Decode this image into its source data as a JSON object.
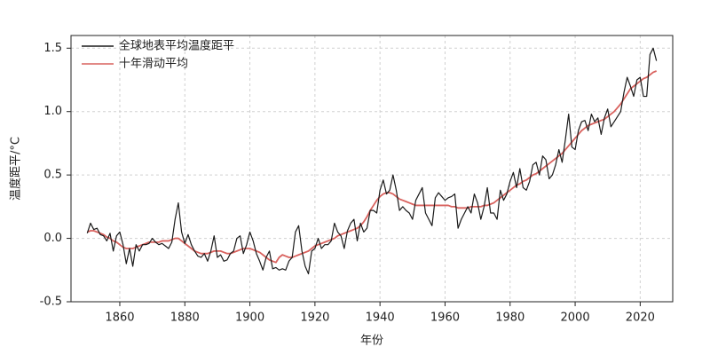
{
  "chart_data": {
    "type": "line",
    "xlabel": "年份",
    "ylabel": "温度距平/°C",
    "x": [
      1850,
      1851,
      1852,
      1853,
      1854,
      1855,
      1856,
      1857,
      1858,
      1859,
      1860,
      1861,
      1862,
      1863,
      1864,
      1865,
      1866,
      1867,
      1868,
      1869,
      1870,
      1871,
      1872,
      1873,
      1874,
      1875,
      1876,
      1877,
      1878,
      1879,
      1880,
      1881,
      1882,
      1883,
      1884,
      1885,
      1886,
      1887,
      1888,
      1889,
      1890,
      1891,
      1892,
      1893,
      1894,
      1895,
      1896,
      1897,
      1898,
      1899,
      1900,
      1901,
      1902,
      1903,
      1904,
      1905,
      1906,
      1907,
      1908,
      1909,
      1910,
      1911,
      1912,
      1913,
      1914,
      1915,
      1916,
      1917,
      1918,
      1919,
      1920,
      1921,
      1922,
      1923,
      1924,
      1925,
      1926,
      1927,
      1928,
      1929,
      1930,
      1931,
      1932,
      1933,
      1934,
      1935,
      1936,
      1937,
      1938,
      1939,
      1940,
      1941,
      1942,
      1943,
      1944,
      1945,
      1946,
      1947,
      1948,
      1949,
      1950,
      1951,
      1952,
      1953,
      1954,
      1955,
      1956,
      1957,
      1958,
      1959,
      1960,
      1961,
      1962,
      1963,
      1964,
      1965,
      1966,
      1967,
      1968,
      1969,
      1970,
      1971,
      1972,
      1973,
      1974,
      1975,
      1976,
      1977,
      1978,
      1979,
      1980,
      1981,
      1982,
      1983,
      1984,
      1985,
      1986,
      1987,
      1988,
      1989,
      1990,
      1991,
      1992,
      1993,
      1994,
      1995,
      1996,
      1997,
      1998,
      1999,
      2000,
      2001,
      2002,
      2003,
      2004,
      2005,
      2006,
      2007,
      2008,
      2009,
      2010,
      2011,
      2012,
      2013,
      2014,
      2015,
      2016,
      2017,
      2018,
      2019,
      2020,
      2021,
      2022,
      2023,
      2024,
      2025
    ],
    "series": [
      {
        "name": "十年滑动平均",
        "color": "#d9625e",
        "values": [
          0.05,
          0.06,
          0.06,
          0.05,
          0.04,
          0.03,
          0.01,
          0.0,
          -0.02,
          -0.03,
          -0.05,
          -0.07,
          -0.08,
          -0.08,
          -0.08,
          -0.07,
          -0.06,
          -0.05,
          -0.04,
          -0.03,
          -0.03,
          -0.03,
          -0.03,
          -0.02,
          -0.02,
          -0.02,
          -0.01,
          0.0,
          0.0,
          -0.02,
          -0.04,
          -0.06,
          -0.08,
          -0.1,
          -0.11,
          -0.12,
          -0.12,
          -0.12,
          -0.11,
          -0.1,
          -0.1,
          -0.1,
          -0.11,
          -0.12,
          -0.12,
          -0.11,
          -0.1,
          -0.09,
          -0.08,
          -0.08,
          -0.08,
          -0.09,
          -0.1,
          -0.11,
          -0.13,
          -0.15,
          -0.17,
          -0.18,
          -0.19,
          -0.15,
          -0.13,
          -0.14,
          -0.15,
          -0.15,
          -0.14,
          -0.13,
          -0.12,
          -0.11,
          -0.1,
          -0.08,
          -0.06,
          -0.05,
          -0.04,
          -0.03,
          -0.02,
          -0.01,
          0.0,
          0.02,
          0.03,
          0.04,
          0.05,
          0.06,
          0.07,
          0.08,
          0.1,
          0.13,
          0.17,
          0.22,
          0.26,
          0.3,
          0.33,
          0.35,
          0.36,
          0.36,
          0.35,
          0.33,
          0.31,
          0.3,
          0.29,
          0.28,
          0.27,
          0.26,
          0.26,
          0.26,
          0.26,
          0.26,
          0.26,
          0.26,
          0.26,
          0.26,
          0.26,
          0.26,
          0.25,
          0.25,
          0.24,
          0.24,
          0.24,
          0.24,
          0.25,
          0.25,
          0.25,
          0.25,
          0.26,
          0.26,
          0.27,
          0.28,
          0.3,
          0.32,
          0.34,
          0.36,
          0.38,
          0.4,
          0.42,
          0.43,
          0.45,
          0.46,
          0.48,
          0.5,
          0.51,
          0.53,
          0.55,
          0.57,
          0.59,
          0.61,
          0.63,
          0.65,
          0.67,
          0.7,
          0.73,
          0.76,
          0.79,
          0.82,
          0.85,
          0.87,
          0.89,
          0.9,
          0.91,
          0.92,
          0.93,
          0.94,
          0.96,
          0.98,
          1.0,
          1.03,
          1.06,
          1.1,
          1.14,
          1.18,
          1.2,
          1.22,
          1.24,
          1.26,
          1.27,
          1.29,
          1.31,
          1.32
        ]
      },
      {
        "name": "全球地表平均温度距平",
        "color": "#1a1a1a",
        "values": [
          0.04,
          0.12,
          0.07,
          0.08,
          0.03,
          0.02,
          -0.02,
          0.04,
          -0.1,
          0.02,
          0.05,
          -0.05,
          -0.2,
          -0.08,
          -0.22,
          -0.05,
          -0.1,
          -0.05,
          -0.05,
          -0.04,
          0.0,
          -0.03,
          -0.05,
          -0.04,
          -0.06,
          -0.08,
          -0.03,
          0.15,
          0.28,
          0.05,
          -0.04,
          0.03,
          -0.05,
          -0.1,
          -0.14,
          -0.15,
          -0.12,
          -0.18,
          -0.1,
          0.02,
          -0.15,
          -0.13,
          -0.18,
          -0.17,
          -0.12,
          -0.1,
          0.0,
          0.02,
          -0.12,
          -0.05,
          0.05,
          -0.02,
          -0.12,
          -0.18,
          -0.25,
          -0.15,
          -0.1,
          -0.24,
          -0.23,
          -0.25,
          -0.24,
          -0.25,
          -0.18,
          -0.15,
          0.05,
          0.1,
          -0.1,
          -0.22,
          -0.28,
          -0.1,
          -0.08,
          0.0,
          -0.08,
          -0.05,
          -0.05,
          -0.02,
          0.12,
          0.05,
          0.02,
          -0.08,
          0.06,
          0.12,
          0.15,
          -0.02,
          0.12,
          0.05,
          0.08,
          0.22,
          0.22,
          0.2,
          0.38,
          0.46,
          0.35,
          0.38,
          0.5,
          0.38,
          0.22,
          0.25,
          0.22,
          0.2,
          0.15,
          0.3,
          0.35,
          0.4,
          0.2,
          0.15,
          0.1,
          0.32,
          0.36,
          0.33,
          0.3,
          0.32,
          0.33,
          0.35,
          0.08,
          0.15,
          0.2,
          0.25,
          0.2,
          0.35,
          0.28,
          0.15,
          0.25,
          0.4,
          0.2,
          0.2,
          0.15,
          0.38,
          0.3,
          0.35,
          0.45,
          0.52,
          0.4,
          0.55,
          0.4,
          0.38,
          0.45,
          0.58,
          0.6,
          0.5,
          0.65,
          0.62,
          0.47,
          0.5,
          0.58,
          0.7,
          0.6,
          0.78,
          0.98,
          0.72,
          0.7,
          0.85,
          0.92,
          0.93,
          0.85,
          0.98,
          0.92,
          0.95,
          0.82,
          0.95,
          1.02,
          0.88,
          0.92,
          0.96,
          1.0,
          1.15,
          1.27,
          1.2,
          1.12,
          1.25,
          1.27,
          1.12,
          1.12,
          1.45,
          1.5,
          1.4
        ]
      }
    ],
    "xlim": [
      1845,
      2030
    ],
    "xticks": [
      1860,
      1880,
      1900,
      1920,
      1940,
      1960,
      1980,
      2000,
      2020
    ],
    "ylim": [
      -0.5,
      1.6
    ],
    "yticks": [
      -0.5,
      {
        "value": 0,
        "label": "0.0"
      },
      0.5,
      {
        "value": 1,
        "label": "1.0"
      },
      1.5
    ],
    "grid": true,
    "legend": "upper-left"
  }
}
